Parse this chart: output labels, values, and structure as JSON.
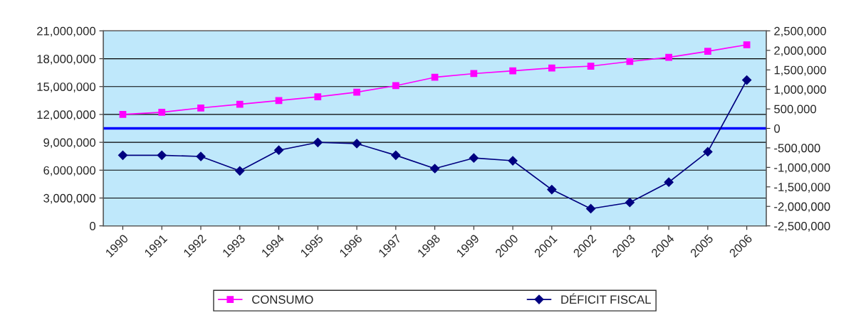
{
  "chart_data": {
    "type": "line",
    "categories": [
      "1990",
      "1991",
      "1992",
      "1993",
      "1994",
      "1995",
      "1996",
      "1997",
      "1998",
      "1999",
      "2000",
      "2001",
      "2002",
      "2003",
      "2004",
      "2005",
      "2006"
    ],
    "series": [
      {
        "name": "CONSUMO",
        "color": "#ff00ff",
        "marker": "square",
        "values": [
          12000000,
          12230000,
          12700000,
          13100000,
          13500000,
          13900000,
          14400000,
          15100000,
          16000000,
          16400000,
          16700000,
          17000000,
          17200000,
          17700000,
          18150000,
          18800000,
          19500000
        ]
      },
      {
        "name": "DÉFICIT FISCAL",
        "color": "#000080",
        "marker": "diamond",
        "axis": "y2",
        "values": [
          -690000,
          -690000,
          -720000,
          -1090000,
          -560000,
          -360000,
          -390000,
          -690000,
          -1030000,
          -760000,
          -830000,
          -1570000,
          -2060000,
          -1900000,
          -1380000,
          -600000,
          1240000
        ]
      }
    ],
    "ylim": [
      0,
      21000000
    ],
    "yticks": [
      {
        "value": 0,
        "label": "0"
      },
      {
        "value": 3000000,
        "label": "3,000,000"
      },
      {
        "value": 6000000,
        "label": "6,000,000"
      },
      {
        "value": 9000000,
        "label": "9,000,000"
      },
      {
        "value": 12000000,
        "label": "12,000,000"
      },
      {
        "value": 15000000,
        "label": "15,000,000"
      },
      {
        "value": 18000000,
        "label": "18,000,000"
      },
      {
        "value": 21000000,
        "label": "21,000,000"
      }
    ],
    "y2lim": [
      -2500000,
      2500000
    ],
    "y2ticks": [
      {
        "value": -2500000,
        "label": "-2,500,000"
      },
      {
        "value": -2000000,
        "label": "-2,000,000"
      },
      {
        "value": -1500000,
        "label": "-1,500,000"
      },
      {
        "value": -1000000,
        "label": "-1,000,000"
      },
      {
        "value": -500000,
        "label": "-500,000"
      },
      {
        "value": 0,
        "label": "0"
      },
      {
        "value": 500000,
        "label": "500,000"
      },
      {
        "value": 1000000,
        "label": "1,000,000"
      },
      {
        "value": 1500000,
        "label": "1,500,000"
      },
      {
        "value": 2000000,
        "label": "2,000,000"
      },
      {
        "value": 2500000,
        "label": "2,500,000"
      }
    ],
    "ref_lines": [
      {
        "axis": "y2",
        "value": 0,
        "color": "#0000ff"
      }
    ],
    "grid": "y",
    "legend": "bottom"
  }
}
